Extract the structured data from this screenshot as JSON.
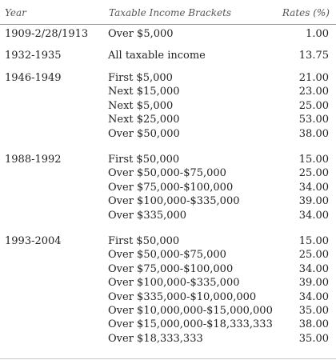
{
  "header": {
    "year": "Year",
    "brackets": "Taxable Income Brackets",
    "rates": "Rates (%)"
  },
  "groups": [
    {
      "year": "1909-2/28/1913",
      "rows": [
        {
          "bracket": "Over $5,000",
          "rate": "1.00"
        }
      ]
    },
    {
      "year": "1932-1935",
      "rows": [
        {
          "bracket": "All taxable income",
          "rate": "13.75"
        }
      ]
    },
    {
      "year": "1946-1949",
      "rows": [
        {
          "bracket": "First $5,000",
          "rate": "21.00"
        },
        {
          "bracket": "Next $15,000",
          "rate": "23.00"
        },
        {
          "bracket": "Next $5,000",
          "rate": "25.00"
        },
        {
          "bracket": "Next $25,000",
          "rate": "53.00"
        },
        {
          "bracket": "Over $50,000",
          "rate": "38.00"
        }
      ]
    },
    {
      "year": "1988-1992",
      "rows": [
        {
          "bracket": "First $50,000",
          "rate": "15.00"
        },
        {
          "bracket": "Over $50,000-$75,000",
          "rate": "25.00"
        },
        {
          "bracket": "Over $75,000-$100,000",
          "rate": "34.00"
        },
        {
          "bracket": "Over $100,000-$335,000",
          "rate": "39.00"
        },
        {
          "bracket": "Over $335,000",
          "rate": "34.00"
        }
      ]
    },
    {
      "year": "1993-2004",
      "rows": [
        {
          "bracket": "First $50,000",
          "rate": "15.00"
        },
        {
          "bracket": "Over $50,000-$75,000",
          "rate": "25.00"
        },
        {
          "bracket": "Over $75,000-$100,000",
          "rate": "34.00"
        },
        {
          "bracket": "Over $100,000-$335,000",
          "rate": "39.00"
        },
        {
          "bracket": "Over $335,000-$10,000,000",
          "rate": "34.00"
        },
        {
          "bracket": "Over $10,000,000-$15,000,000",
          "rate": "35.00"
        },
        {
          "bracket": "Over $15,000,000-$18,333,333",
          "rate": "38.00"
        },
        {
          "bracket": "Over $18,333,333",
          "rate": "35.00"
        }
      ]
    }
  ]
}
